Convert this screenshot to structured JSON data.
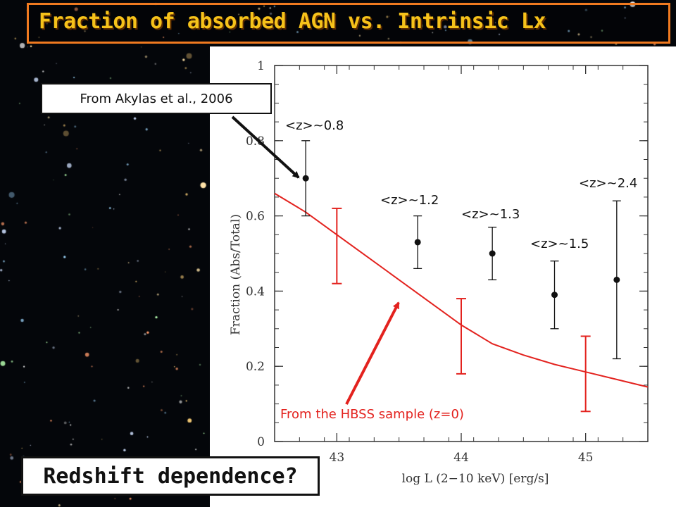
{
  "slide": {
    "title": "Fraction of absorbed AGN vs. Intrinsic Lx",
    "callout_akylas": "From Akylas et al., 2006",
    "hbss_label": "From the HBSS sample (z=0)",
    "bottom_question": "Redshift dependence?",
    "redshift_labels": [
      "<z>~0.8",
      "<z>~1.2",
      "<z>~1.3",
      "<z>~1.5",
      "<z>~2.4"
    ]
  },
  "colors": {
    "title_text": "#f6c21a",
    "title_border": "#f07a20",
    "model": "#e3221e",
    "data": "#111111"
  },
  "chart_data": {
    "type": "scatter",
    "xlabel": "log L (2−10 keV) [erg/s]",
    "ylabel": "Fraction (Abs/Total)",
    "xlim": [
      42.5,
      45.5
    ],
    "ylim": [
      0,
      1
    ],
    "x_ticks": [
      43,
      44,
      45
    ],
    "y_ticks": [
      0,
      0.2,
      0.4,
      0.6,
      0.8,
      1
    ],
    "x_tick_labels": [
      "43",
      "44",
      "45"
    ],
    "y_tick_labels": [
      "0",
      "0.2",
      "0.4",
      "0.6",
      "0.8",
      "1"
    ],
    "series": [
      {
        "kind": "points_with_errors",
        "points": [
          {
            "x": 42.75,
            "y": 0.7,
            "ylo": 0.6,
            "yhi": 0.8
          },
          {
            "x": 43.65,
            "y": 0.53,
            "ylo": 0.46,
            "yhi": 0.6
          },
          {
            "x": 44.25,
            "y": 0.5,
            "ylo": 0.43,
            "yhi": 0.57
          },
          {
            "x": 44.75,
            "y": 0.39,
            "ylo": 0.3,
            "yhi": 0.48
          },
          {
            "x": 45.25,
            "y": 0.43,
            "ylo": 0.22,
            "yhi": 0.64
          }
        ]
      },
      {
        "kind": "model_curve",
        "points": [
          {
            "x": 42.5,
            "y": 0.66
          },
          {
            "x": 42.75,
            "y": 0.61
          },
          {
            "x": 43.0,
            "y": 0.55
          },
          {
            "x": 43.25,
            "y": 0.49
          },
          {
            "x": 43.5,
            "y": 0.43
          },
          {
            "x": 43.75,
            "y": 0.37
          },
          {
            "x": 44.0,
            "y": 0.31
          },
          {
            "x": 44.25,
            "y": 0.26
          },
          {
            "x": 44.5,
            "y": 0.23
          },
          {
            "x": 44.75,
            "y": 0.205
          },
          {
            "x": 45.0,
            "y": 0.185
          },
          {
            "x": 45.25,
            "y": 0.165
          },
          {
            "x": 45.5,
            "y": 0.145
          }
        ]
      },
      {
        "kind": "model_errorbars",
        "points": [
          {
            "x": 43.0,
            "ylo": 0.42,
            "yhi": 0.62
          },
          {
            "x": 44.0,
            "ylo": 0.18,
            "yhi": 0.38
          },
          {
            "x": 45.0,
            "ylo": 0.08,
            "yhi": 0.28
          }
        ]
      }
    ]
  }
}
